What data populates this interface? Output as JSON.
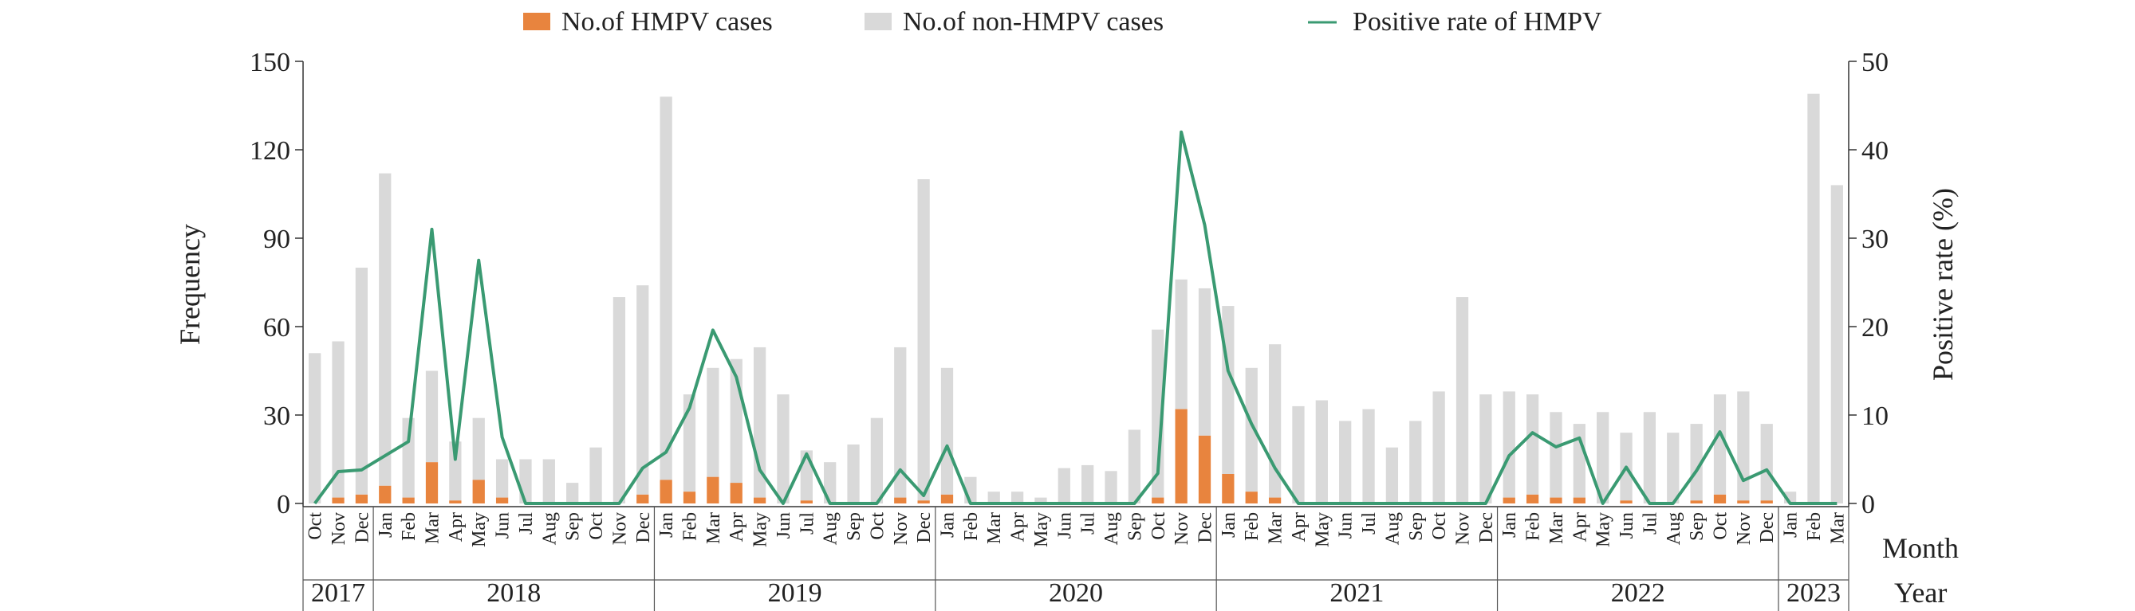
{
  "chart_data": {
    "type": "bar",
    "title": "",
    "legend": {
      "placement": "top",
      "items": [
        {
          "label": "No.of HMPV cases",
          "kind": "bar",
          "color": "#E8843E"
        },
        {
          "label": "No.of non-HMPV cases",
          "kind": "bar",
          "color": "#D9D9D9"
        },
        {
          "label": "Positive rate of HMPV",
          "kind": "line",
          "color": "#3A9A72"
        }
      ]
    },
    "ylabel": "Frequency",
    "y2label": "Positive rate (%)",
    "xlabel_month": "Month",
    "xlabel_year": "Year",
    "ylim": [
      0,
      150
    ],
    "y2lim": [
      0,
      50
    ],
    "yticks": [
      "0",
      "30",
      "60",
      "90",
      "120",
      "150"
    ],
    "y2ticks": [
      "0",
      "10",
      "20",
      "30",
      "40",
      "50"
    ],
    "grid": false,
    "categories": [
      "Oct",
      "Nov",
      "Dec",
      "Jan",
      "Feb",
      "Mar",
      "Apr",
      "May",
      "Jun",
      "Jul",
      "Aug",
      "Sep",
      "Oct",
      "Nov",
      "Dec",
      "Jan",
      "Feb",
      "Mar",
      "Apr",
      "May",
      "Jun",
      "Jul",
      "Aug",
      "Sep",
      "Oct",
      "Nov",
      "Dec",
      "Jan",
      "Feb",
      "Mar",
      "Apr",
      "May",
      "Jun",
      "Jul",
      "Aug",
      "Sep",
      "Oct",
      "Nov",
      "Dec",
      "Jan",
      "Feb",
      "Mar",
      "Apr",
      "May",
      "Jun",
      "Jul",
      "Aug",
      "Sep",
      "Oct",
      "Nov",
      "Dec",
      "Jan",
      "Feb",
      "Mar",
      "Apr",
      "May",
      "Jun",
      "Jul",
      "Aug",
      "Sep",
      "Oct",
      "Nov",
      "Dec",
      "Jan",
      "Feb",
      "Mar"
    ],
    "years": [
      {
        "label": "2017",
        "count": 3
      },
      {
        "label": "2018",
        "count": 12
      },
      {
        "label": "2019",
        "count": 12
      },
      {
        "label": "2020",
        "count": 12
      },
      {
        "label": "2021",
        "count": 12
      },
      {
        "label": "2022",
        "count": 12
      },
      {
        "label": "2023",
        "count": 3
      }
    ],
    "series": [
      {
        "name": "No.of HMPV cases",
        "type": "bar",
        "color": "#E8843E",
        "values": [
          0,
          2,
          3,
          6,
          2,
          14,
          1,
          8,
          2,
          0,
          0,
          0,
          0,
          0,
          3,
          8,
          4,
          9,
          7,
          2,
          0,
          1,
          0,
          0,
          0,
          2,
          1,
          3,
          0,
          0,
          0,
          0,
          0,
          0,
          0,
          0,
          2,
          32,
          23,
          10,
          4,
          2,
          0,
          0,
          0,
          0,
          0,
          0,
          0,
          0,
          0,
          2,
          3,
          2,
          2,
          0,
          1,
          0,
          0,
          1,
          3,
          1,
          1,
          0,
          0,
          0
        ]
      },
      {
        "name": "No.of non-HMPV cases",
        "type": "bar",
        "color": "#D9D9D9",
        "values": [
          51,
          53,
          77,
          106,
          27,
          31,
          20,
          21,
          13,
          15,
          15,
          7,
          19,
          70,
          71,
          130,
          33,
          37,
          42,
          51,
          37,
          17,
          14,
          20,
          29,
          51,
          109,
          43,
          9,
          4,
          4,
          2,
          12,
          13,
          11,
          25,
          57,
          44,
          50,
          57,
          42,
          52,
          33,
          35,
          28,
          32,
          19,
          28,
          38,
          70,
          37,
          36,
          34,
          29,
          25,
          31,
          23,
          31,
          24,
          26,
          34,
          37,
          26,
          4,
          139,
          108
        ]
      },
      {
        "name": "Positive rate of HMPV",
        "type": "line",
        "color": "#3A9A72",
        "axis": "right",
        "values": [
          0,
          3.6,
          3.8,
          5.4,
          7,
          31,
          5,
          27.5,
          7.5,
          0,
          0,
          0,
          0,
          0,
          4,
          5.8,
          10.8,
          19.6,
          14.3,
          3.8,
          0,
          5.6,
          0,
          0,
          0,
          3.8,
          0.9,
          6.5,
          0,
          0,
          0,
          0,
          0,
          0,
          0,
          0,
          3.4,
          42,
          31.5,
          15,
          9,
          4,
          0,
          0,
          0,
          0,
          0,
          0,
          0,
          0,
          0,
          5.4,
          8,
          6.4,
          7.4,
          0,
          4.1,
          0,
          0,
          3.7,
          8.1,
          2.6,
          3.8,
          0,
          0,
          0
        ]
      }
    ]
  }
}
